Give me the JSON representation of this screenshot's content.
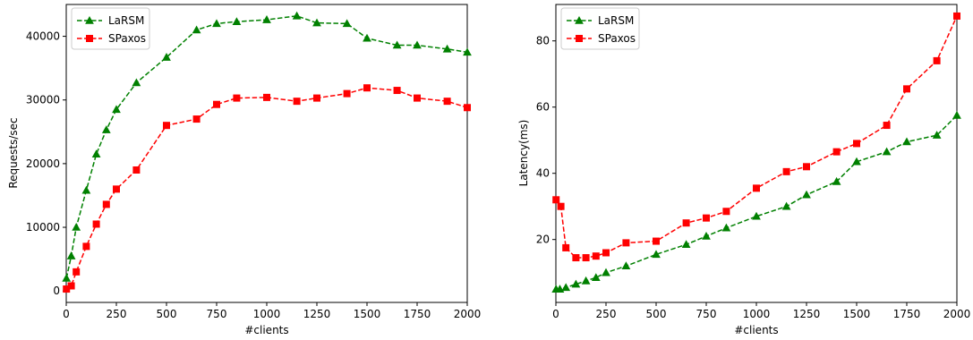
{
  "chart_data": [
    {
      "type": "line",
      "title": "",
      "xlabel": "#clients",
      "ylabel": "Requests/sec",
      "xlim": [
        0,
        2000
      ],
      "ylim": [
        -1800,
        45000
      ],
      "xticks": [
        0,
        250,
        500,
        750,
        1000,
        1250,
        1500,
        1750,
        2000
      ],
      "yticks": [
        0,
        10000,
        20000,
        30000,
        40000
      ],
      "legend_position": "top-left",
      "grid": false,
      "series": [
        {
          "name": "LaRSM",
          "color": "#008000",
          "marker": "triangle",
          "points": [
            [
              1,
              2000
            ],
            [
              25,
              5500
            ],
            [
              50,
              10000
            ],
            [
              100,
              15800
            ],
            [
              150,
              21500
            ],
            [
              200,
              25300
            ],
            [
              250,
              28500
            ],
            [
              350,
              32700
            ],
            [
              500,
              36700
            ],
            [
              650,
              41000
            ],
            [
              750,
              42000
            ],
            [
              850,
              42300
            ],
            [
              1000,
              42600
            ],
            [
              1150,
              43200
            ],
            [
              1250,
              42100
            ],
            [
              1400,
              42000
            ],
            [
              1500,
              39700
            ],
            [
              1650,
              38600
            ],
            [
              1750,
              38600
            ],
            [
              1900,
              38000
            ],
            [
              2000,
              37500
            ]
          ]
        },
        {
          "name": "SPaxos",
          "color": "#ff0000",
          "marker": "square",
          "points": [
            [
              1,
              300
            ],
            [
              25,
              800
            ],
            [
              50,
              3000
            ],
            [
              100,
              7000
            ],
            [
              150,
              10500
            ],
            [
              200,
              13600
            ],
            [
              250,
              16000
            ],
            [
              350,
              19000
            ],
            [
              500,
              26000
            ],
            [
              650,
              27000
            ],
            [
              750,
              29300
            ],
            [
              850,
              30300
            ],
            [
              1000,
              30400
            ],
            [
              1150,
              29800
            ],
            [
              1250,
              30300
            ],
            [
              1400,
              31000
            ],
            [
              1500,
              31900
            ],
            [
              1650,
              31500
            ],
            [
              1750,
              30300
            ],
            [
              1900,
              29800
            ],
            [
              2000,
              28800
            ]
          ]
        }
      ]
    },
    {
      "type": "line",
      "title": "",
      "xlabel": "#clients",
      "ylabel": "Latency(ms)",
      "xlim": [
        0,
        2000
      ],
      "ylim": [
        1,
        91
      ],
      "xticks": [
        0,
        250,
        500,
        750,
        1000,
        1250,
        1500,
        1750,
        2000
      ],
      "yticks": [
        20,
        40,
        60,
        80
      ],
      "legend_position": "top-left",
      "grid": false,
      "series": [
        {
          "name": "LaRSM",
          "color": "#008000",
          "marker": "triangle",
          "points": [
            [
              1,
              5
            ],
            [
              20,
              5
            ],
            [
              50,
              5.5
            ],
            [
              100,
              6.5
            ],
            [
              150,
              7.5
            ],
            [
              200,
              8.5
            ],
            [
              250,
              10
            ],
            [
              350,
              12
            ],
            [
              500,
              15.5
            ],
            [
              650,
              18.5
            ],
            [
              750,
              21
            ],
            [
              850,
              23.5
            ],
            [
              1000,
              27
            ],
            [
              1150,
              30
            ],
            [
              1250,
              33.5
            ],
            [
              1400,
              37.5
            ],
            [
              1500,
              43.5
            ],
            [
              1650,
              46.5
            ],
            [
              1750,
              49.5
            ],
            [
              1900,
              51.5
            ],
            [
              2000,
              57.5
            ]
          ]
        },
        {
          "name": "SPaxos",
          "color": "#ff0000",
          "marker": "square",
          "points": [
            [
              1,
              32
            ],
            [
              25,
              30
            ],
            [
              50,
              17.5
            ],
            [
              100,
              14.5
            ],
            [
              150,
              14.5
            ],
            [
              200,
              15
            ],
            [
              250,
              16
            ],
            [
              350,
              19
            ],
            [
              500,
              19.5
            ],
            [
              650,
              25
            ],
            [
              750,
              26.5
            ],
            [
              850,
              28.5
            ],
            [
              1000,
              35.5
            ],
            [
              1150,
              40.5
            ],
            [
              1250,
              42
            ],
            [
              1400,
              46.5
            ],
            [
              1500,
              49
            ],
            [
              1650,
              54.5
            ],
            [
              1750,
              65.5
            ],
            [
              1900,
              74
            ],
            [
              2000,
              87.5
            ]
          ]
        }
      ]
    }
  ]
}
